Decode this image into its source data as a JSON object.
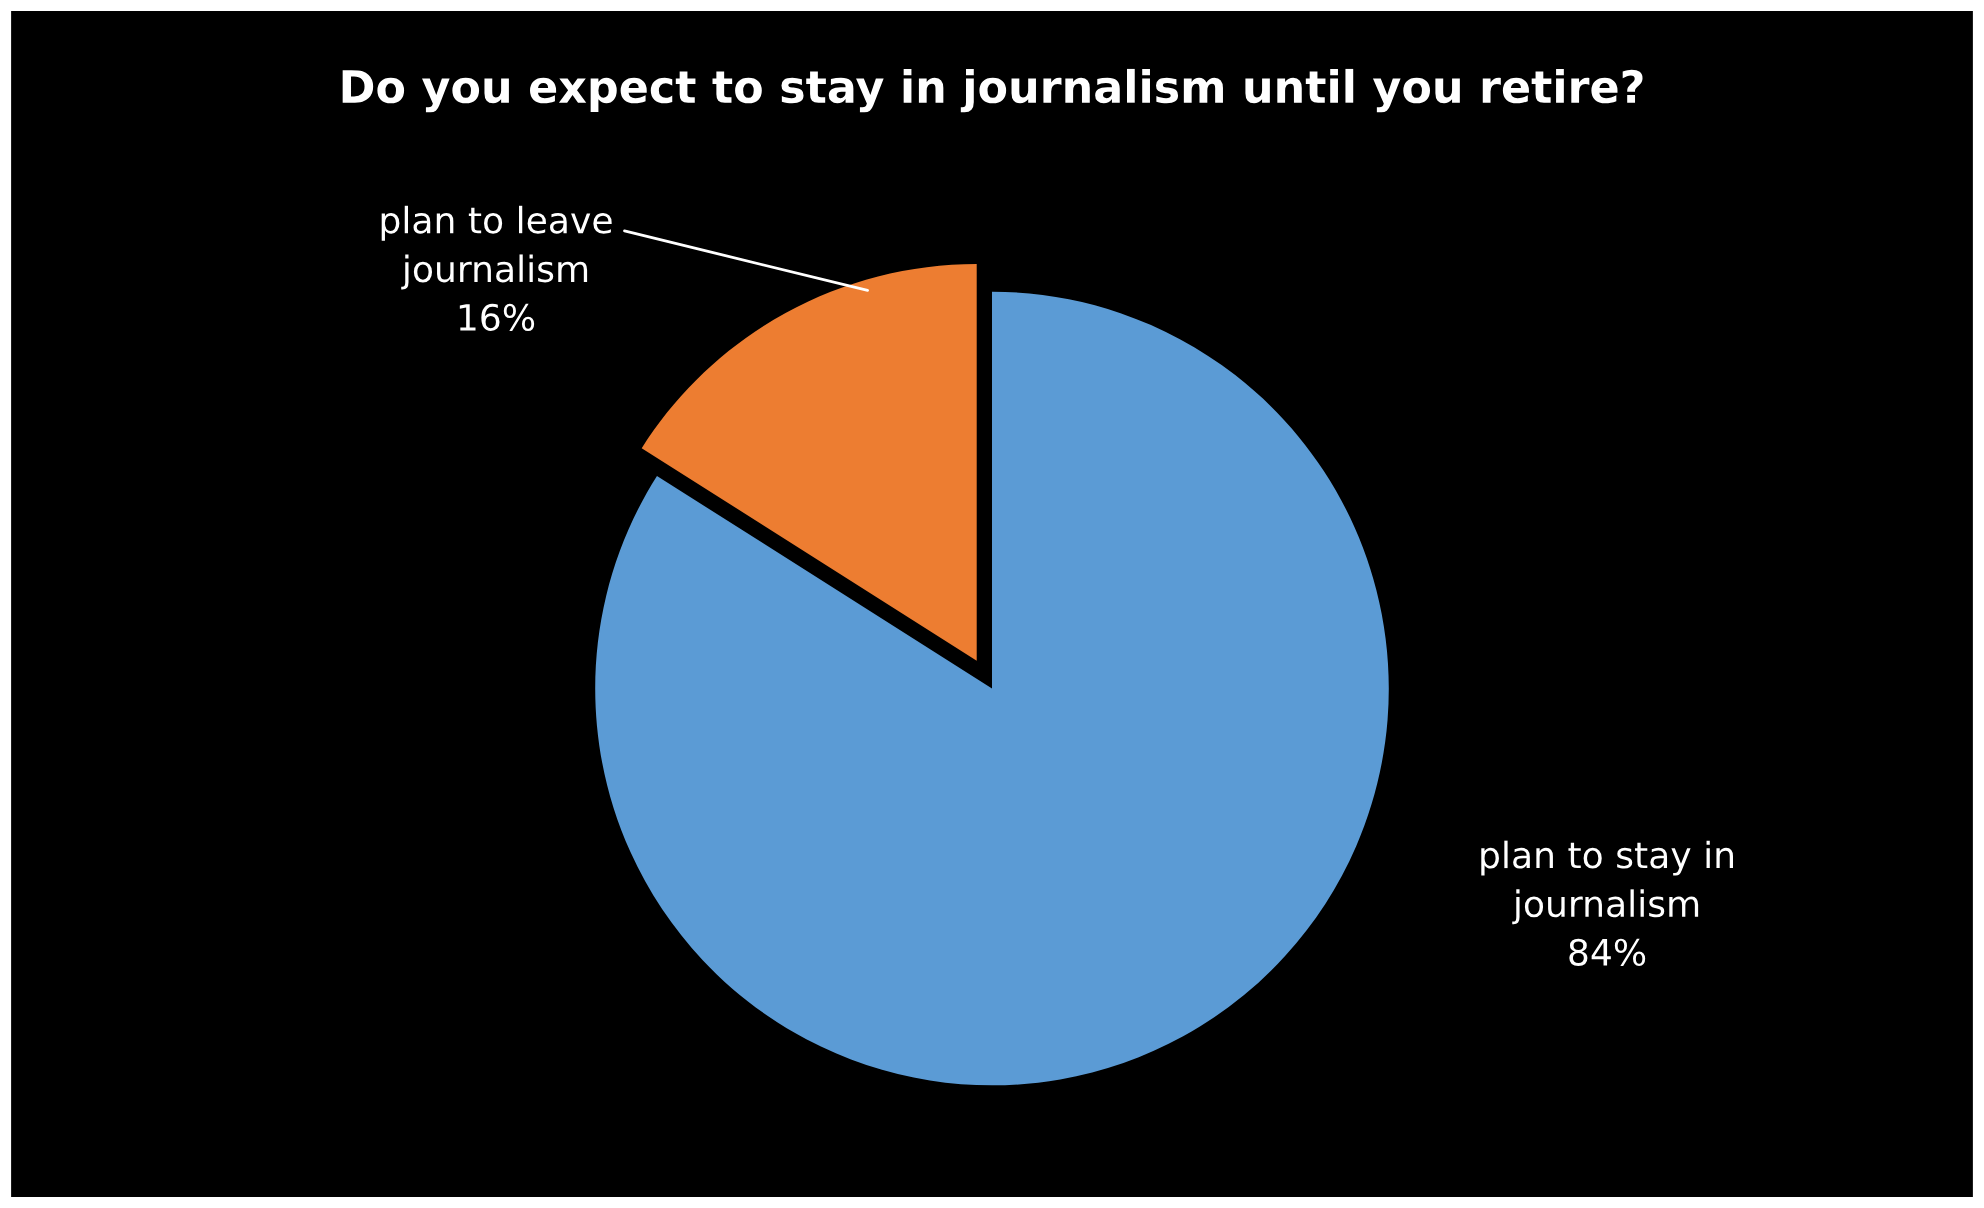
{
  "chart_data": {
    "type": "pie",
    "title": "Do you expect to stay in journalism until you retire?",
    "categories": [
      "plan to stay in\njournalism",
      "plan to leave\njournalism"
    ],
    "values": [
      84,
      16
    ],
    "colors": [
      "#5b9bd5",
      "#ed7d31"
    ],
    "value_labels": [
      "84%",
      "16%"
    ],
    "legend": false
  }
}
